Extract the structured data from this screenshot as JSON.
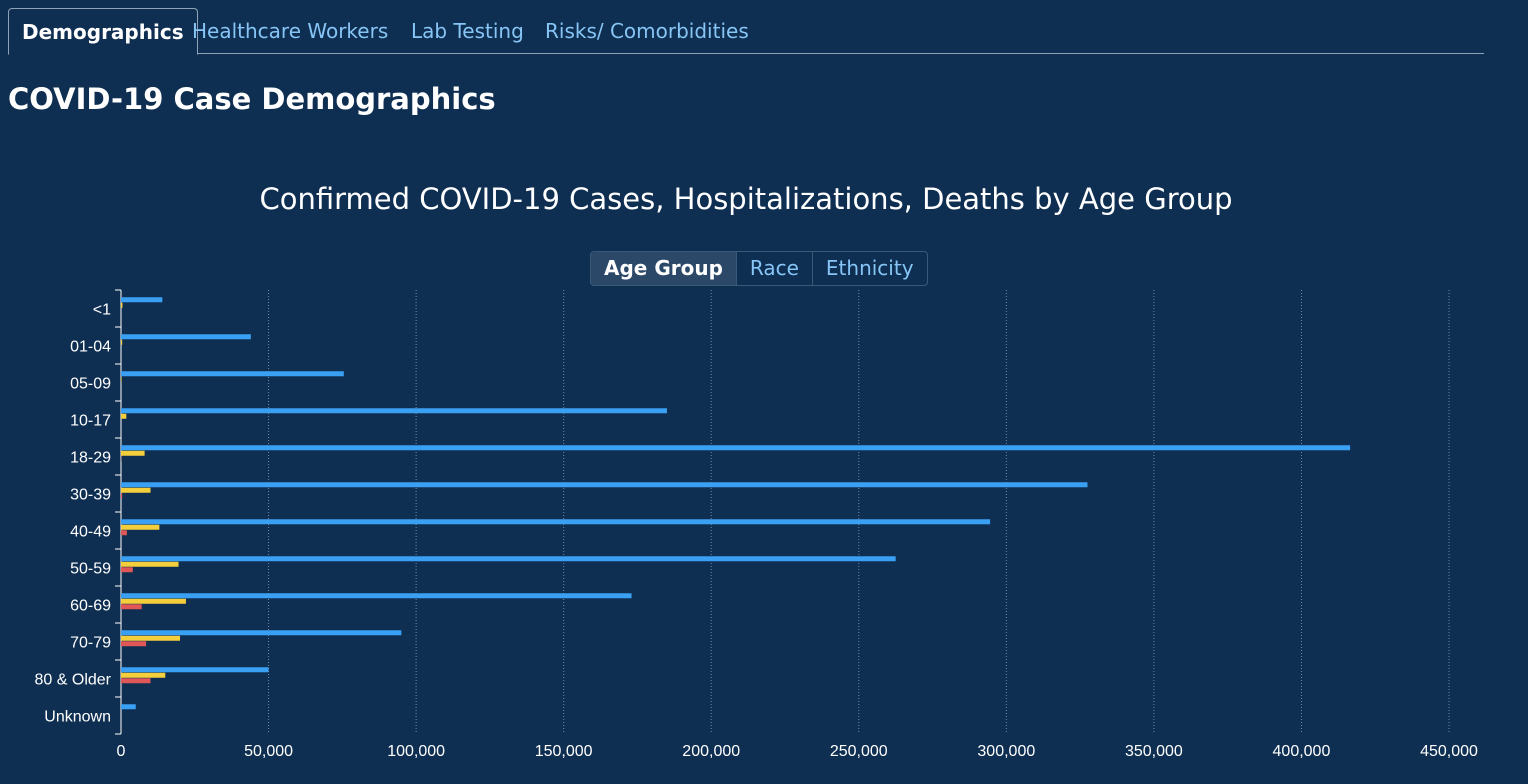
{
  "tabs": [
    {
      "label": "Demographics",
      "active": true
    },
    {
      "label": "Healthcare Workers",
      "active": false
    },
    {
      "label": "Lab Testing",
      "active": false
    },
    {
      "label": "Risks/ Comorbidities",
      "active": false
    }
  ],
  "page_title": "COVID-19 Case Demographics",
  "toggle": {
    "options": [
      "Age Group",
      "Race",
      "Ethnicity"
    ],
    "selected": "Age Group"
  },
  "colors": {
    "background": "#0f2f52",
    "cases": "#3aa0f3",
    "hospitalizations": "#f5cf3b",
    "deaths": "#e05757",
    "grid": "#6f8aa8"
  },
  "chart_data": {
    "type": "bar",
    "orientation": "horizontal",
    "title": "Confirmed COVID-19 Cases, Hospitalizations, Deaths by Age Group",
    "categories": [
      "<1",
      "01-04",
      "05-09",
      "10-17",
      "18-29",
      "30-39",
      "40-49",
      "50-59",
      "60-69",
      "70-79",
      "80 & Older",
      "Unknown"
    ],
    "series": [
      {
        "name": "Cases",
        "values": [
          14000,
          44000,
          75500,
          185000,
          416500,
          327500,
          294500,
          262500,
          173000,
          95000,
          50000,
          5000
        ]
      },
      {
        "name": "Hospitalizations",
        "values": [
          500,
          400,
          200,
          1800,
          8000,
          10000,
          13000,
          19500,
          22000,
          20000,
          15000,
          0
        ]
      },
      {
        "name": "Deaths",
        "values": [
          0,
          0,
          0,
          0,
          100,
          400,
          2000,
          4000,
          7000,
          8500,
          10000,
          0
        ]
      }
    ],
    "xlim": [
      0,
      450000
    ],
    "xticks": [
      0,
      50000,
      100000,
      150000,
      200000,
      250000,
      300000,
      350000,
      400000,
      450000
    ],
    "xtick_labels": [
      "0",
      "50,000",
      "100,000",
      "150,000",
      "200,000",
      "250,000",
      "300,000",
      "350,000",
      "400,000",
      "450,000"
    ],
    "grid": true
  }
}
